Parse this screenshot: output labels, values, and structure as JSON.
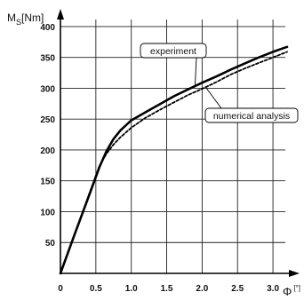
{
  "chart_data": {
    "type": "line",
    "title": "",
    "ylabel": {
      "main": "M",
      "sub": "S",
      "unit": "[Nm]"
    },
    "xlabel": {
      "symbol": "Φ",
      "unit": "[°]"
    },
    "xlim": [
      0,
      3.25
    ],
    "ylim": [
      0,
      420
    ],
    "xticks": [
      0,
      0.5,
      1.0,
      1.5,
      2.0,
      2.5,
      3.0
    ],
    "xtick_labels": [
      "0",
      "0.5",
      "1.0",
      "1.5",
      "2.0",
      "2.5",
      "3.0"
    ],
    "yticks": [
      50,
      100,
      150,
      200,
      250,
      300,
      350,
      400
    ],
    "ytick_labels": [
      "50",
      "100",
      "150",
      "200",
      "250",
      "300",
      "350",
      "400"
    ],
    "grid": true,
    "series": [
      {
        "name": "experiment",
        "style": "solid",
        "x": [
          0,
          0.2,
          0.4,
          0.55,
          0.65,
          0.75,
          0.85,
          1.0,
          1.2,
          1.4,
          1.6,
          1.8,
          2.0,
          2.2,
          2.4,
          2.6,
          2.8,
          3.0,
          3.2
        ],
        "y": [
          0,
          63,
          125,
          172,
          198,
          218,
          232,
          248,
          261,
          274,
          287,
          298,
          309,
          319,
          330,
          340,
          350,
          359,
          367
        ]
      },
      {
        "name": "numerical analysis",
        "style": "dashed",
        "x": [
          0,
          0.2,
          0.4,
          0.55,
          0.65,
          0.75,
          0.85,
          1.0,
          1.2,
          1.4,
          1.6,
          1.8,
          2.0,
          2.2,
          2.4,
          2.6,
          2.8,
          3.0,
          3.2
        ],
        "y": [
          0,
          63,
          127,
          174,
          194,
          209,
          221,
          236,
          252,
          265,
          277,
          289,
          299,
          310,
          322,
          332,
          341,
          350,
          359
        ]
      }
    ],
    "annotations": [
      {
        "text": "experiment",
        "target_series": 0,
        "at_x": 1.9
      },
      {
        "text": "numerical analysis",
        "target_series": 1,
        "at_x": 2.05
      }
    ]
  }
}
